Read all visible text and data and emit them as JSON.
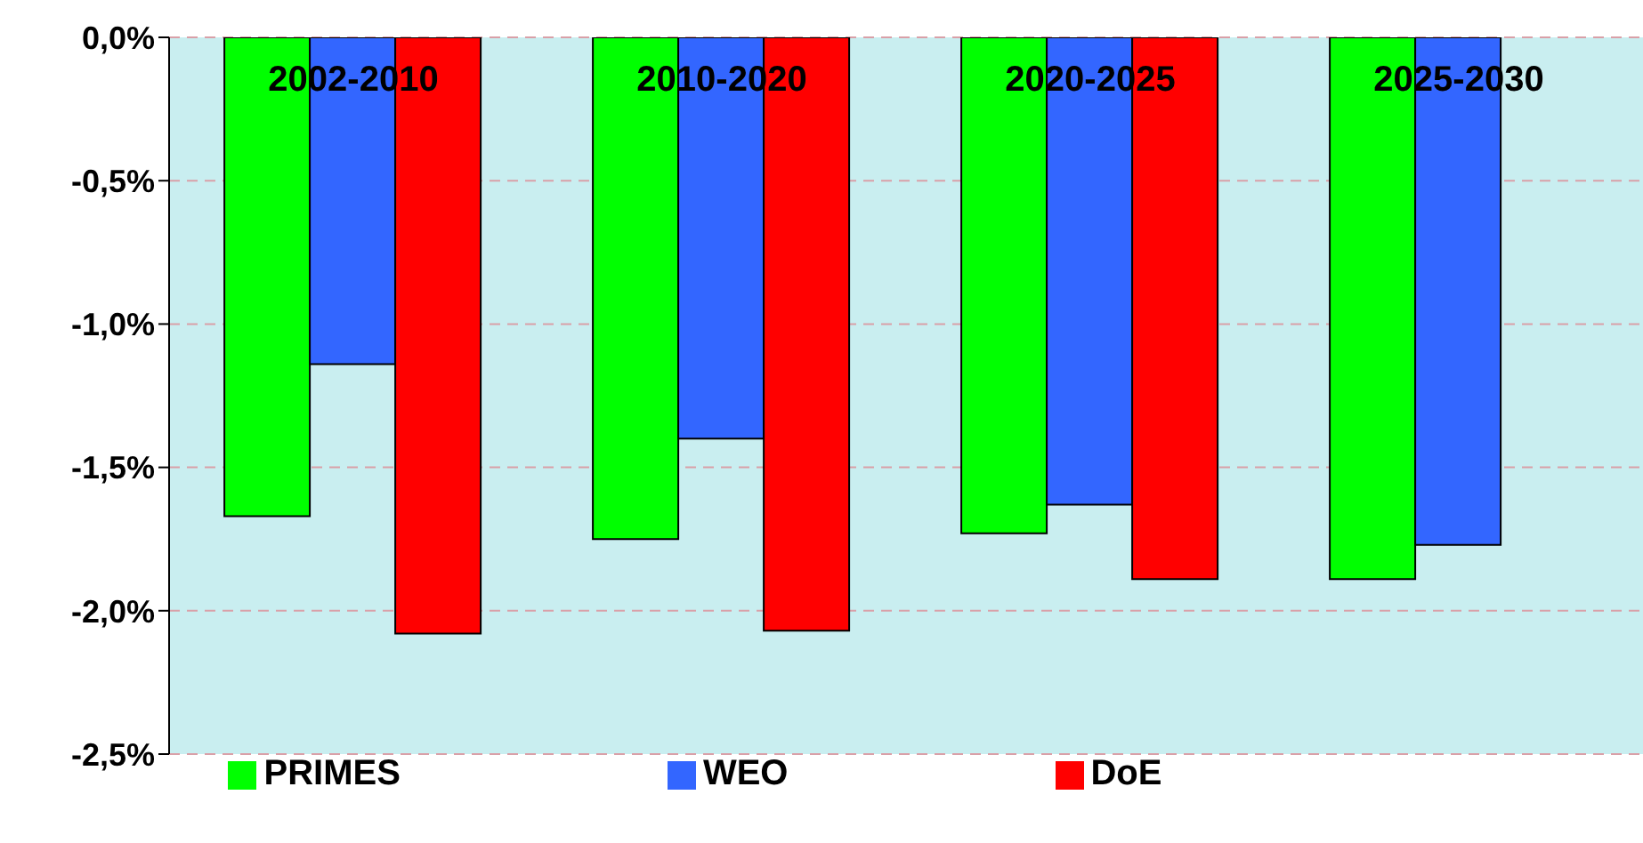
{
  "chart_data": {
    "type": "bar",
    "categories": [
      "2002-2010",
      "2010-2020",
      "2020-2025",
      "2025-2030"
    ],
    "series": [
      {
        "name": "PRIMES",
        "color": "#00ff00",
        "values": [
          -1.67,
          -1.75,
          -1.73,
          -1.89
        ]
      },
      {
        "name": "WEO",
        "color": "#3366ff",
        "values": [
          -1.14,
          -1.4,
          -1.63,
          -1.77
        ]
      },
      {
        "name": "DoE",
        "color": "#ff0000",
        "values": [
          -2.08,
          -2.07,
          -1.89,
          null
        ]
      }
    ],
    "ylim": [
      -2.5,
      0
    ],
    "yticks": [
      {
        "value": 0,
        "label": "0,0%"
      },
      {
        "value": -0.5,
        "label": "-0,5%"
      },
      {
        "value": -1,
        "label": "-1,0%"
      },
      {
        "value": -1.5,
        "label": "-1,5%"
      },
      {
        "value": -2,
        "label": "-2,0%"
      },
      {
        "value": -2.5,
        "label": "-2,5%"
      }
    ],
    "grid": "y",
    "legend": "bottom"
  }
}
